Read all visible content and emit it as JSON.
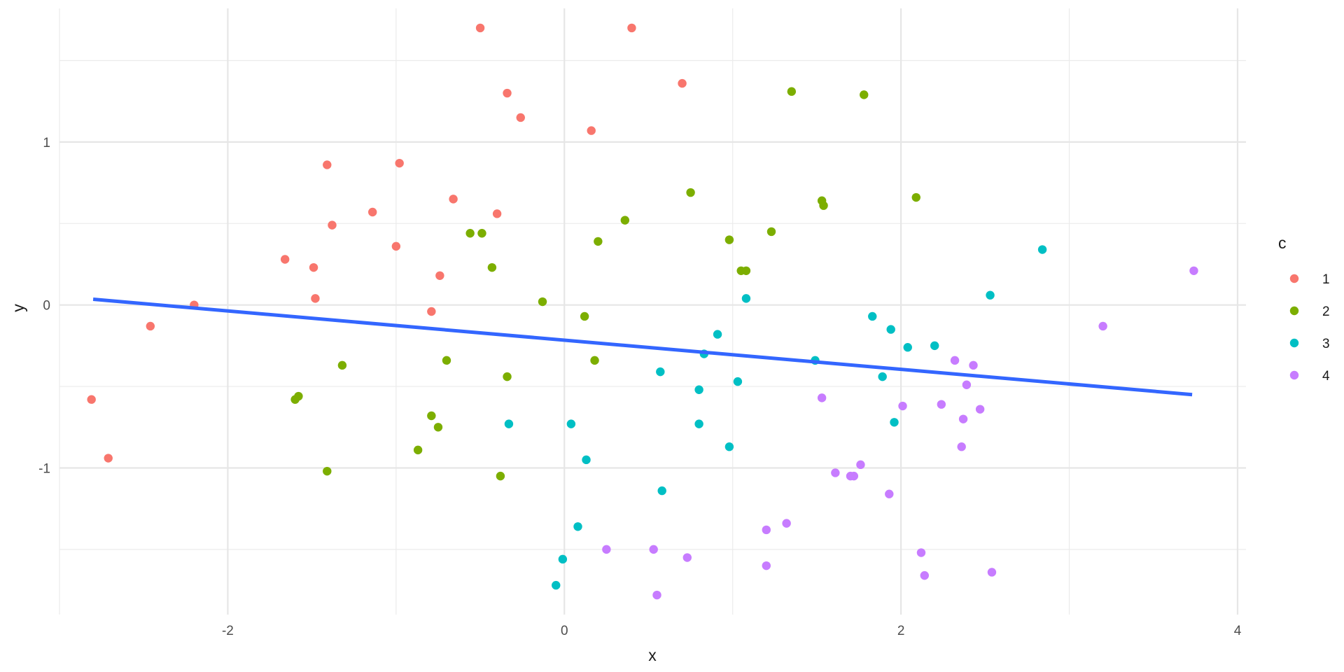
{
  "chart_data": {
    "type": "scatter",
    "title": "",
    "xlabel": "x",
    "ylabel": "y",
    "xlim": [
      -3.0,
      4.05
    ],
    "ylim": [
      -1.9,
      1.82
    ],
    "x_ticks": [
      -2,
      0,
      2,
      4
    ],
    "x_tick_labels": [
      "-2",
      "0",
      "2",
      "4"
    ],
    "x_minor_ticks": [
      -3,
      -1,
      1,
      3
    ],
    "y_ticks": [
      -1,
      0,
      1
    ],
    "y_tick_labels": [
      "-1",
      "0",
      "1"
    ],
    "y_minor_ticks": [
      -1.5,
      -0.5,
      0.5,
      1.5
    ],
    "grid": true,
    "legend": {
      "title": "c",
      "position": "right"
    },
    "series": [
      {
        "name": "1",
        "color": "#F8766D",
        "points": [
          [
            -0.5,
            1.7
          ],
          [
            0.4,
            1.7
          ],
          [
            0.7,
            1.36
          ],
          [
            -0.34,
            1.3
          ],
          [
            -0.26,
            1.15
          ],
          [
            0.16,
            1.07
          ],
          [
            -1.41,
            0.86
          ],
          [
            -0.98,
            0.87
          ],
          [
            -0.66,
            0.65
          ],
          [
            -1.14,
            0.57
          ],
          [
            -0.4,
            0.56
          ],
          [
            -1.38,
            0.49
          ],
          [
            -1.66,
            0.28
          ],
          [
            -1.49,
            0.23
          ],
          [
            -1.0,
            0.36
          ],
          [
            -0.74,
            0.18
          ],
          [
            -1.48,
            0.04
          ],
          [
            -2.2,
            0.0
          ],
          [
            -0.79,
            -0.04
          ],
          [
            -2.46,
            -0.13
          ],
          [
            -2.81,
            -0.58
          ],
          [
            -2.71,
            -0.94
          ]
        ]
      },
      {
        "name": "2",
        "color": "#7CAE00",
        "points": [
          [
            1.35,
            1.31
          ],
          [
            1.78,
            1.29
          ],
          [
            0.75,
            0.69
          ],
          [
            1.53,
            0.64
          ],
          [
            1.54,
            0.61
          ],
          [
            2.09,
            0.66
          ],
          [
            -0.56,
            0.44
          ],
          [
            -0.49,
            0.44
          ],
          [
            0.36,
            0.52
          ],
          [
            1.23,
            0.45
          ],
          [
            0.2,
            0.39
          ],
          [
            0.98,
            0.4
          ],
          [
            -0.43,
            0.23
          ],
          [
            1.05,
            0.21
          ],
          [
            1.08,
            0.21
          ],
          [
            -0.13,
            0.02
          ],
          [
            0.12,
            -0.07
          ],
          [
            -1.32,
            -0.37
          ],
          [
            -0.7,
            -0.34
          ],
          [
            0.18,
            -0.34
          ],
          [
            -0.34,
            -0.44
          ],
          [
            -1.6,
            -0.58
          ],
          [
            -1.58,
            -0.56
          ],
          [
            -0.79,
            -0.68
          ],
          [
            -0.75,
            -0.75
          ],
          [
            -0.87,
            -0.89
          ],
          [
            -1.41,
            -1.02
          ],
          [
            -0.38,
            -1.05
          ]
        ]
      },
      {
        "name": "3",
        "color": "#00BFC4",
        "points": [
          [
            2.84,
            0.34
          ],
          [
            2.53,
            0.06
          ],
          [
            1.08,
            0.04
          ],
          [
            1.83,
            -0.07
          ],
          [
            1.94,
            -0.15
          ],
          [
            0.91,
            -0.18
          ],
          [
            2.04,
            -0.26
          ],
          [
            2.2,
            -0.25
          ],
          [
            0.83,
            -0.3
          ],
          [
            1.49,
            -0.34
          ],
          [
            0.57,
            -0.41
          ],
          [
            1.03,
            -0.47
          ],
          [
            1.89,
            -0.44
          ],
          [
            0.8,
            -0.52
          ],
          [
            1.96,
            -0.72
          ],
          [
            -0.33,
            -0.73
          ],
          [
            0.04,
            -0.73
          ],
          [
            0.8,
            -0.73
          ],
          [
            0.98,
            -0.87
          ],
          [
            0.13,
            -0.95
          ],
          [
            0.58,
            -1.14
          ],
          [
            0.08,
            -1.36
          ],
          [
            -0.01,
            -1.56
          ],
          [
            -0.05,
            -1.72
          ]
        ]
      },
      {
        "name": "4",
        "color": "#C77CFF",
        "points": [
          [
            3.74,
            0.21
          ],
          [
            3.2,
            -0.13
          ],
          [
            2.32,
            -0.34
          ],
          [
            2.43,
            -0.37
          ],
          [
            2.39,
            -0.49
          ],
          [
            1.53,
            -0.57
          ],
          [
            2.01,
            -0.62
          ],
          [
            2.24,
            -0.61
          ],
          [
            2.47,
            -0.64
          ],
          [
            2.37,
            -0.7
          ],
          [
            2.36,
            -0.87
          ],
          [
            1.76,
            -0.98
          ],
          [
            1.61,
            -1.03
          ],
          [
            1.72,
            -1.05
          ],
          [
            1.7,
            -1.05
          ],
          [
            1.93,
            -1.16
          ],
          [
            1.32,
            -1.34
          ],
          [
            1.2,
            -1.38
          ],
          [
            0.25,
            -1.5
          ],
          [
            0.53,
            -1.5
          ],
          [
            0.73,
            -1.55
          ],
          [
            2.12,
            -1.52
          ],
          [
            1.2,
            -1.6
          ],
          [
            2.14,
            -1.66
          ],
          [
            2.54,
            -1.64
          ],
          [
            0.55,
            -1.78
          ]
        ]
      }
    ],
    "trend_line": {
      "color": "#3366FF",
      "points": [
        [
          -2.8,
          0.035
        ],
        [
          3.73,
          -0.55
        ]
      ]
    }
  }
}
